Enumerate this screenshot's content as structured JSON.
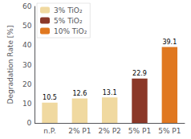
{
  "chart_data": {
    "type": "bar",
    "categories": [
      "n.P.",
      "2% P1",
      "2% P2",
      "5% P1",
      "5% P1"
    ],
    "series": [
      {
        "name": "3% TiO₂",
        "color": "#f0d9a0",
        "values": [
          10.5,
          12.6,
          13.1,
          null,
          null
        ]
      },
      {
        "name": "5% TiO₂",
        "color": "#8b3828",
        "values": [
          null,
          null,
          null,
          22.9,
          null
        ]
      },
      {
        "name": "10% TiO₂",
        "color": "#e07820",
        "values": [
          null,
          null,
          null,
          null,
          39.1
        ]
      }
    ],
    "ylabel": "Degradation Rate [%]",
    "ylim": [
      0,
      60
    ],
    "yticks": [
      0,
      10,
      20,
      30,
      40,
      50,
      60
    ],
    "data_labels": true,
    "legend": "upper left",
    "grid": false
  }
}
